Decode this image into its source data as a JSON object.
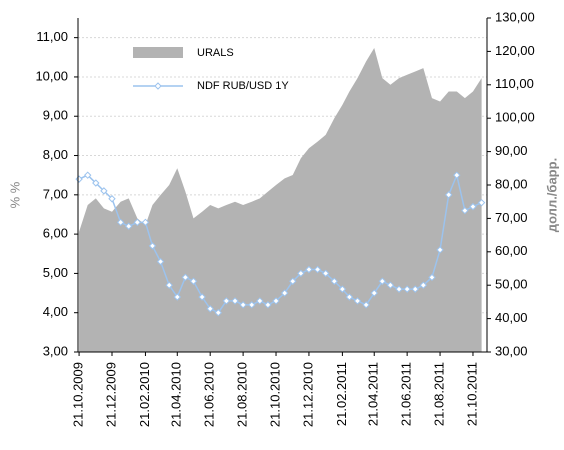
{
  "chart_data": {
    "type": "area-line",
    "y_label": "% %",
    "y2_label": "долл./барр.",
    "x": [
      "21.10.2009",
      "06.11.2009",
      "21.11.2009",
      "06.12.2009",
      "21.12.2009",
      "06.01.2010",
      "21.01.2010",
      "06.02.2010",
      "21.02.2010",
      "06.03.2010",
      "21.03.2010",
      "06.04.2010",
      "21.04.2010",
      "06.05.2010",
      "21.05.2010",
      "06.06.2010",
      "21.06.2010",
      "06.07.2010",
      "21.07.2010",
      "06.08.2010",
      "21.08.2010",
      "06.09.2010",
      "21.09.2010",
      "06.10.2010",
      "21.10.2010",
      "06.11.2010",
      "21.11.2010",
      "06.12.2010",
      "21.12.2010",
      "06.01.2011",
      "21.01.2011",
      "06.02.2011",
      "21.02.2011",
      "06.03.2011",
      "21.03.2011",
      "06.04.2011",
      "21.04.2011",
      "06.05.2011",
      "21.05.2011",
      "06.06.2011",
      "21.06.2011",
      "06.07.2011",
      "21.07.2011",
      "06.08.2011",
      "21.08.2011",
      "06.09.2011",
      "21.09.2011",
      "06.10.2011",
      "21.10.2011",
      "06.11.2011"
    ],
    "series": [
      {
        "name": "URALS",
        "color": "#b3b3b3",
        "axis": "y2",
        "kind": "area",
        "values": [
          66,
          74,
          76,
          73,
          72,
          75,
          76,
          70,
          68,
          74,
          77,
          80,
          85,
          78,
          70,
          72,
          74,
          73,
          74,
          75,
          74,
          75,
          76,
          78,
          80,
          82,
          83,
          88,
          91,
          93,
          95,
          100,
          104,
          108,
          112,
          117,
          121,
          112,
          110,
          112,
          113,
          114,
          115,
          106,
          105,
          108,
          108,
          106,
          108,
          112
        ]
      },
      {
        "name": "NDF RUB/USD 1Y",
        "color": "#9cc3ee",
        "axis": "y",
        "kind": "line",
        "values": [
          7.4,
          7.5,
          7.3,
          7.1,
          6.9,
          6.3,
          6.2,
          6.3,
          6.3,
          5.7,
          5.3,
          4.7,
          4.4,
          4.9,
          4.8,
          4.4,
          4.1,
          4.0,
          4.3,
          4.3,
          4.2,
          4.2,
          4.3,
          4.2,
          4.3,
          4.5,
          4.8,
          5.0,
          5.1,
          5.1,
          5.0,
          4.8,
          4.6,
          4.4,
          4.3,
          4.2,
          4.5,
          4.8,
          4.7,
          4.6,
          4.6,
          4.6,
          4.7,
          4.9,
          5.6,
          7.0,
          7.5,
          6.6,
          6.7,
          6.8
        ]
      }
    ],
    "xlim": [
      "19.10.2009",
      "16.11.2011"
    ],
    "xticks": [
      "21.10.2009",
      "21.12.2009",
      "21.02.2010",
      "21.04.2010",
      "21.06.2010",
      "21.08.2010",
      "21.10.2010",
      "21.12.2010",
      "21.02.2011",
      "21.04.2011",
      "21.06.2011",
      "21.08.2011",
      "21.10.2011"
    ],
    "ylim": [
      3,
      11.5
    ],
    "yticks": [
      {
        "value": 3,
        "label": "3,00"
      },
      {
        "value": 4,
        "label": "4,00"
      },
      {
        "value": 5,
        "label": "5,00"
      },
      {
        "value": 6,
        "label": "6,00"
      },
      {
        "value": 7,
        "label": "7,00"
      },
      {
        "value": 8,
        "label": "8,00"
      },
      {
        "value": 9,
        "label": "9,00"
      },
      {
        "value": 10,
        "label": "10,00"
      },
      {
        "value": 11,
        "label": "11,00"
      }
    ],
    "y2lim": [
      30,
      130
    ],
    "y2ticks": [
      {
        "value": 30,
        "label": "30,00"
      },
      {
        "value": 40,
        "label": "40,00"
      },
      {
        "value": 50,
        "label": "50,00"
      },
      {
        "value": 60,
        "label": "60,00"
      },
      {
        "value": 70,
        "label": "70,00"
      },
      {
        "value": 80,
        "label": "80,00"
      },
      {
        "value": 90,
        "label": "90,00"
      },
      {
        "value": 100,
        "label": "100,00"
      },
      {
        "value": 110,
        "label": "110,00"
      },
      {
        "value": 120,
        "label": "120,00"
      },
      {
        "value": 130,
        "label": "130,00"
      }
    ],
    "grid": true
  }
}
